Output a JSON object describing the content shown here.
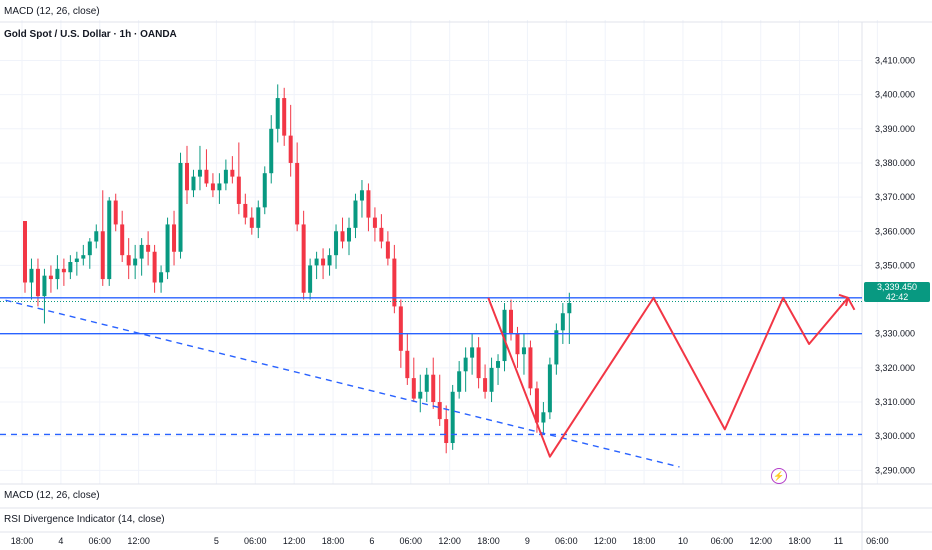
{
  "header": {
    "top_indicator": "MACD (12, 26, close)",
    "symbol_title": "Gold Spot / U.S. Dollar · 1h · OANDA"
  },
  "bottom_panes": {
    "macd_label": "MACD (12, 26, close)",
    "rsi_label": "RSI Divergence Indicator (14, close)"
  },
  "price_badge": {
    "price": "3,339.450",
    "countdown": "42:42"
  },
  "icons": {
    "flash": "lightning-icon"
  },
  "colors": {
    "up": "#089981",
    "down": "#f23645",
    "levels": "#2962ff",
    "pattern": "#f23645",
    "axis_text": "#131722",
    "grid": "#f0f3fa"
  },
  "chart_data": {
    "type": "candlestick",
    "y_axis_ticks": [
      "3,410.000",
      "3,400.000",
      "3,390.000",
      "3,380.000",
      "3,370.000",
      "3,360.000",
      "3,350.000",
      "3,330.000",
      "3,320.000",
      "3,310.000",
      "3,300.000",
      "3,290.000"
    ],
    "ylim": [
      3286,
      3416
    ],
    "x_axis_ticks": [
      {
        "label": "18:00",
        "t": 0
      },
      {
        "label": "4",
        "t": 6
      },
      {
        "label": "06:00",
        "t": 12
      },
      {
        "label": "12:00",
        "t": 18
      },
      {
        "label": "5",
        "t": 30
      },
      {
        "label": "06:00",
        "t": 36
      },
      {
        "label": "12:00",
        "t": 42
      },
      {
        "label": "18:00",
        "t": 48
      },
      {
        "label": "6",
        "t": 54
      },
      {
        "label": "06:00",
        "t": 60
      },
      {
        "label": "12:00",
        "t": 66
      },
      {
        "label": "18:00",
        "t": 72
      },
      {
        "label": "9",
        "t": 78
      },
      {
        "label": "06:00",
        "t": 84
      },
      {
        "label": "12:00",
        "t": 90
      },
      {
        "label": "18:00",
        "t": 96
      },
      {
        "label": "10",
        "t": 102
      },
      {
        "label": "06:00",
        "t": 108
      },
      {
        "label": "12:00",
        "t": 114
      },
      {
        "label": "18:00",
        "t": 120
      },
      {
        "label": "11",
        "t": 126
      },
      {
        "label": "06:00",
        "t": 132
      }
    ],
    "horizontal_levels": [
      {
        "price": 3340.5,
        "style": "solid"
      },
      {
        "price": 3330,
        "style": "solid"
      },
      {
        "price": 3300.5,
        "style": "dashed"
      }
    ],
    "trendline": {
      "style": "dashed",
      "points": [
        [
          -3,
          3339.8
        ],
        [
          101,
          3291
        ]
      ]
    },
    "pattern_path": [
      [
        71.5,
        3340.5
      ],
      [
        81,
        3294
      ],
      [
        97,
        3340.5
      ],
      [
        108,
        3302
      ],
      [
        117,
        3340.5
      ],
      [
        121,
        3327
      ],
      [
        127,
        3340.5
      ],
      [
        128,
        3337
      ]
    ],
    "ohlc": [
      [
        3363,
        3363,
        3342,
        3345
      ],
      [
        3345,
        3352,
        3340,
        3349
      ],
      [
        3349,
        3352,
        3338,
        3341
      ],
      [
        3341,
        3349,
        3333,
        3347
      ],
      [
        3347,
        3350,
        3342,
        3346
      ],
      [
        3346,
        3353,
        3343,
        3349
      ],
      [
        3349,
        3352,
        3344,
        3348
      ],
      [
        3348,
        3353,
        3346,
        3351
      ],
      [
        3351,
        3354,
        3347,
        3352
      ],
      [
        3352,
        3356,
        3350,
        3353
      ],
      [
        3353,
        3358,
        3349,
        3357
      ],
      [
        3357,
        3362,
        3355,
        3360
      ],
      [
        3360,
        3372,
        3344,
        3346
      ],
      [
        3346,
        3370,
        3344,
        3369
      ],
      [
        3369,
        3371,
        3360,
        3362
      ],
      [
        3362,
        3366,
        3351,
        3353
      ],
      [
        3353,
        3358,
        3346,
        3350
      ],
      [
        3350,
        3356,
        3346,
        3352
      ],
      [
        3352,
        3358,
        3347,
        3356
      ],
      [
        3356,
        3360,
        3350,
        3354
      ],
      [
        3354,
        3356,
        3342,
        3345
      ],
      [
        3345,
        3350,
        3342,
        3348
      ],
      [
        3348,
        3364,
        3346,
        3362
      ],
      [
        3362,
        3366,
        3350,
        3354
      ],
      [
        3354,
        3383,
        3352,
        3380
      ],
      [
        3380,
        3385,
        3368,
        3372
      ],
      [
        3372,
        3378,
        3370,
        3376
      ],
      [
        3376,
        3385,
        3372,
        3378
      ],
      [
        3378,
        3384,
        3373,
        3374
      ],
      [
        3374,
        3377,
        3370,
        3372
      ],
      [
        3372,
        3377,
        3368,
        3374
      ],
      [
        3374,
        3381,
        3372,
        3378
      ],
      [
        3378,
        3382,
        3374,
        3376
      ],
      [
        3376,
        3386,
        3365,
        3368
      ],
      [
        3368,
        3371,
        3362,
        3364
      ],
      [
        3364,
        3367,
        3359,
        3361
      ],
      [
        3361,
        3369,
        3358,
        3367
      ],
      [
        3367,
        3379,
        3365,
        3377
      ],
      [
        3377,
        3394,
        3374,
        3390
      ],
      [
        3390,
        3403,
        3386,
        3399
      ],
      [
        3399,
        3402,
        3385,
        3388
      ],
      [
        3388,
        3397,
        3376,
        3380
      ],
      [
        3380,
        3386,
        3360,
        3362
      ],
      [
        3362,
        3366,
        3340,
        3342
      ],
      [
        3342,
        3352,
        3340,
        3350
      ],
      [
        3350,
        3354,
        3346,
        3352
      ],
      [
        3352,
        3355,
        3346,
        3350
      ],
      [
        3350,
        3355,
        3347,
        3353
      ],
      [
        3353,
        3362,
        3349,
        3360
      ],
      [
        3360,
        3364,
        3355,
        3357
      ],
      [
        3357,
        3364,
        3353,
        3361
      ],
      [
        3361,
        3371,
        3358,
        3369
      ],
      [
        3369,
        3375,
        3364,
        3372
      ],
      [
        3372,
        3374,
        3360,
        3364
      ],
      [
        3364,
        3367,
        3357,
        3361
      ],
      [
        3361,
        3365,
        3355,
        3357
      ],
      [
        3357,
        3360,
        3350,
        3352
      ],
      [
        3352,
        3356,
        3336,
        3338
      ],
      [
        3338,
        3340,
        3320,
        3325
      ],
      [
        3325,
        3330,
        3315,
        3317
      ],
      [
        3317,
        3323,
        3310,
        3311
      ],
      [
        3311,
        3318,
        3307,
        3313
      ],
      [
        3313,
        3320,
        3310,
        3318
      ],
      [
        3318,
        3323,
        3308,
        3310
      ],
      [
        3310,
        3318,
        3303,
        3305
      ],
      [
        3305,
        3309,
        3295,
        3298
      ],
      [
        3298,
        3315,
        3296,
        3313
      ],
      [
        3313,
        3322,
        3311,
        3319
      ],
      [
        3319,
        3326,
        3313,
        3323
      ],
      [
        3323,
        3330,
        3318,
        3326
      ],
      [
        3326,
        3329,
        3314,
        3317
      ],
      [
        3317,
        3321,
        3311,
        3313
      ],
      [
        3313,
        3323,
        3310,
        3320
      ],
      [
        3320,
        3324,
        3315,
        3322
      ],
      [
        3322,
        3339,
        3319,
        3337
      ],
      [
        3337,
        3340,
        3328,
        3330
      ],
      [
        3330,
        3332,
        3320,
        3324
      ],
      [
        3324,
        3330,
        3318,
        3326
      ],
      [
        3326,
        3328,
        3312,
        3314
      ],
      [
        3314,
        3316,
        3301,
        3304
      ],
      [
        3304,
        3310,
        3301,
        3307
      ],
      [
        3307,
        3323,
        3305,
        3321
      ],
      [
        3321,
        3333,
        3318,
        3331
      ],
      [
        3331,
        3339,
        3327,
        3336
      ],
      [
        3336,
        3342,
        3327,
        3339
      ]
    ]
  }
}
